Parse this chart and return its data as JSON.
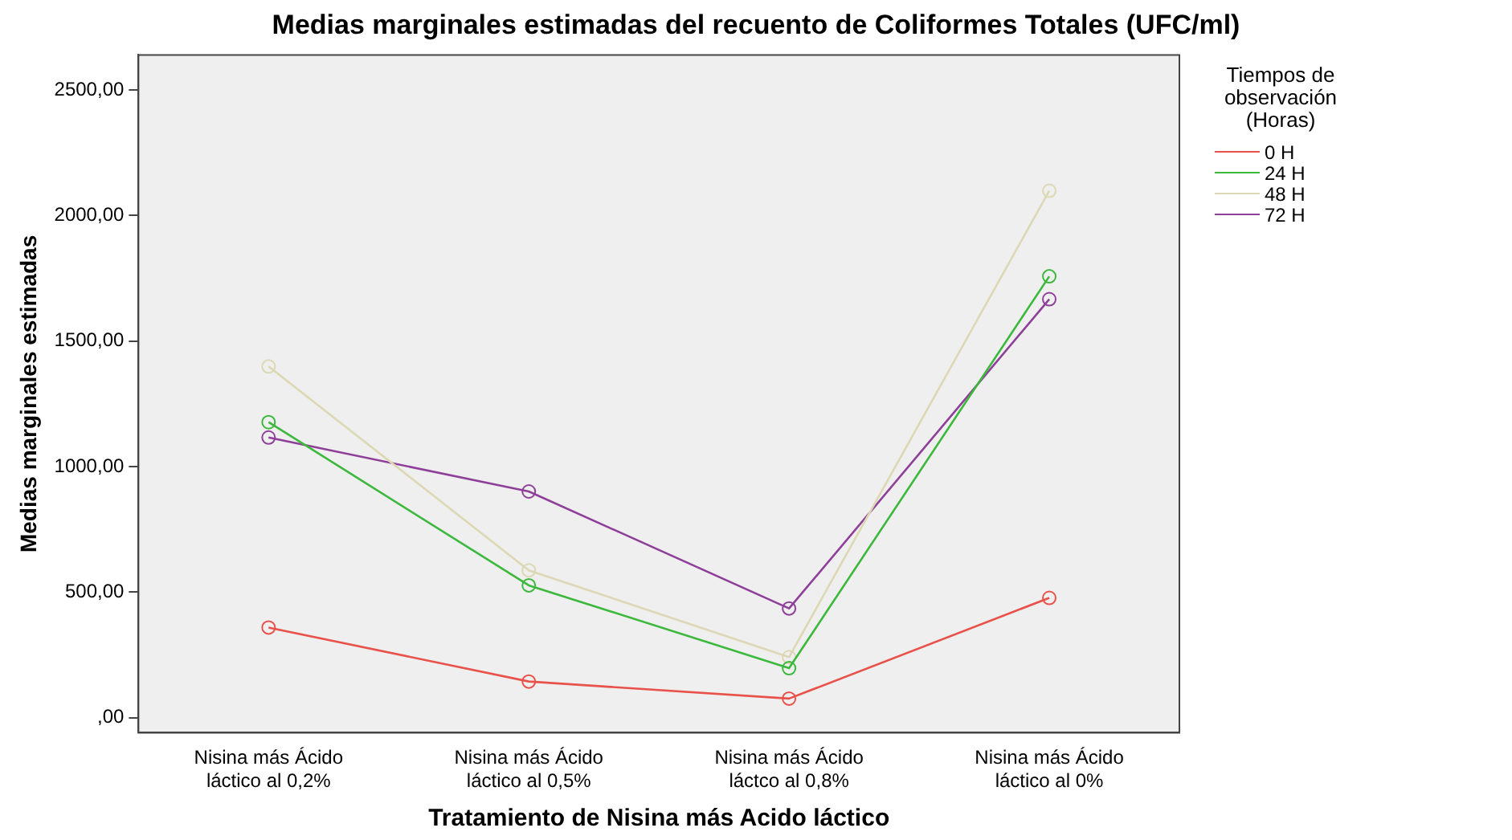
{
  "chart_data": {
    "type": "line",
    "title": "Medias marginales estimadas del recuento de Coliformes Totales (UFC/ml)",
    "xlabel": "Tratamiento de Nisina más Acido láctico",
    "ylabel": "Medias marginales estimadas",
    "legend_title": "Tiempos de observación (Horas)",
    "legend": "right",
    "grid": false,
    "marker": "circle",
    "categories": [
      "Nisina más Ácido láctico al 0,2%",
      "Nisina más Ácido láctico al 0,5%",
      "Nisina más Ácido láctco al 0,8%",
      "Nisina más Ácido láctico al 0%"
    ],
    "ylim": [
      -60,
      2640
    ],
    "yticks": [
      {
        "value": 0,
        "label": ",00"
      },
      {
        "value": 500,
        "label": "500,00"
      },
      {
        "value": 1000,
        "label": "1000,00"
      },
      {
        "value": 1500,
        "label": "1500,00"
      },
      {
        "value": 2000,
        "label": "2000,00"
      },
      {
        "value": 2500,
        "label": "2500,00"
      }
    ],
    "series": [
      {
        "name": "0 H",
        "color": "#e8524a",
        "values": [
          359,
          144,
          76,
          477
        ]
      },
      {
        "name": "24 H",
        "color": "#3cb83c",
        "values": [
          1177,
          527,
          197,
          1758
        ]
      },
      {
        "name": "48 H",
        "color": "#dcd8b4",
        "values": [
          1399,
          587,
          241,
          2099
        ]
      },
      {
        "name": "72 H",
        "color": "#8e3f99",
        "values": [
          1116,
          901,
          435,
          1667
        ]
      }
    ]
  }
}
